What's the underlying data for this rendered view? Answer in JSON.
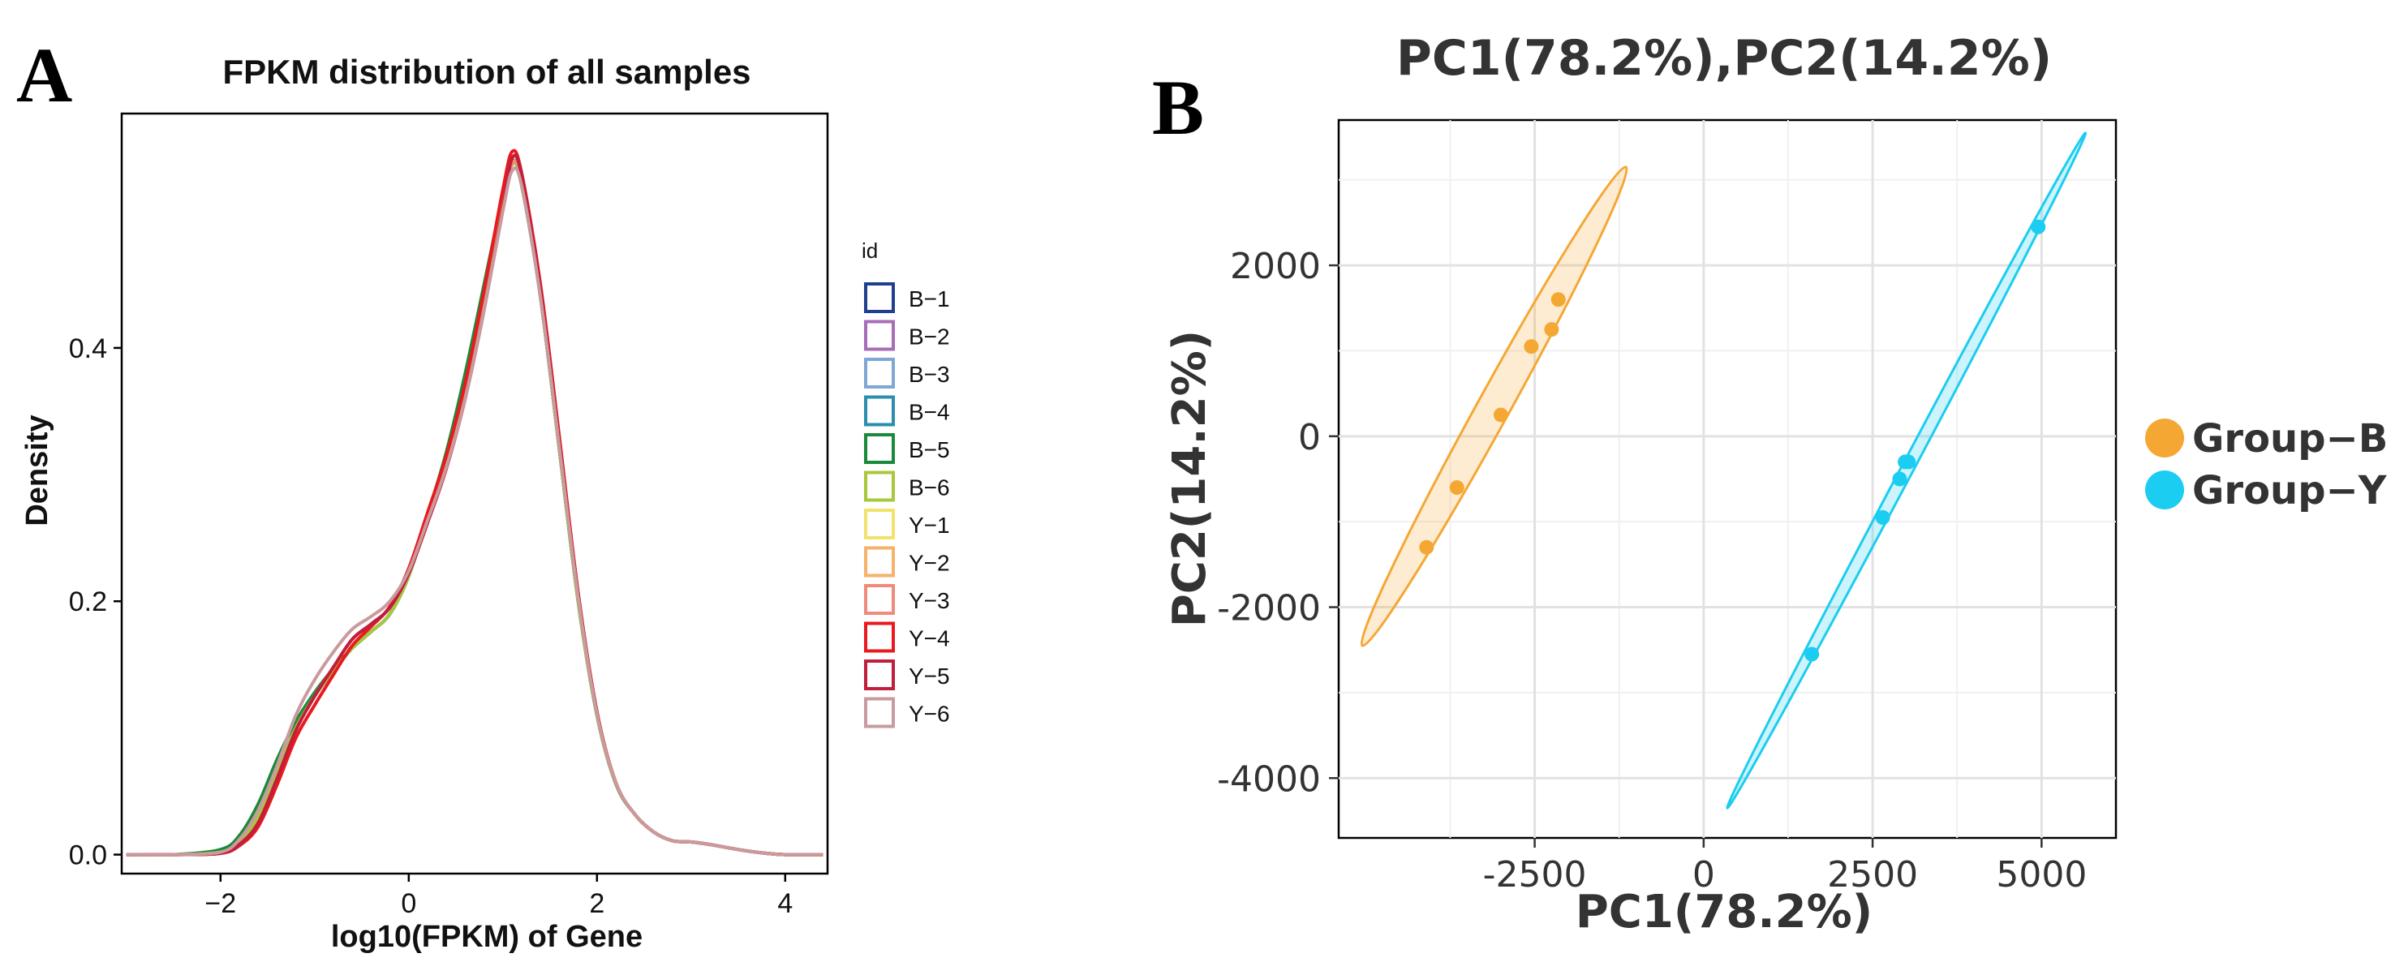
{
  "chart_data": [
    {
      "type": "line",
      "panel": "A",
      "title": "FPKM distribution of all samples",
      "xlabel": "log10(FPKM) of Gene",
      "ylabel": "Density",
      "xlim": [
        -3.05,
        4.45
      ],
      "ylim": [
        -0.015,
        0.585
      ],
      "xticks": [
        -2,
        0,
        2,
        4
      ],
      "yticks": [
        0.0,
        0.2,
        0.4
      ],
      "xtick_labels": [
        "−2",
        "0",
        "2",
        "4"
      ],
      "ytick_labels": [
        "0.0",
        "0.2",
        "0.4"
      ],
      "legend_title": "id",
      "legend_position": "right",
      "x": [
        -3.0,
        -2.5,
        -2.0,
        -1.8,
        -1.6,
        -1.4,
        -1.2,
        -1.0,
        -0.8,
        -0.6,
        -0.4,
        -0.2,
        0.0,
        0.2,
        0.4,
        0.6,
        0.8,
        1.0,
        1.1,
        1.2,
        1.4,
        1.6,
        1.8,
        2.0,
        2.2,
        2.4,
        2.6,
        2.8,
        3.0,
        3.2,
        3.5,
        3.8,
        4.0,
        4.4
      ],
      "series": [
        {
          "name": "B−1",
          "color": "#1f3f8f",
          "values": [
            0.0,
            0.0,
            0.002,
            0.01,
            0.03,
            0.065,
            0.1,
            0.125,
            0.145,
            0.163,
            0.176,
            0.19,
            0.22,
            0.265,
            0.31,
            0.37,
            0.44,
            0.515,
            0.545,
            0.53,
            0.44,
            0.32,
            0.2,
            0.11,
            0.056,
            0.032,
            0.018,
            0.011,
            0.01,
            0.008,
            0.004,
            0.001,
            0.0,
            0.0
          ]
        },
        {
          "name": "B−2",
          "color": "#a86cb8",
          "values": [
            0.0,
            0.0,
            0.002,
            0.01,
            0.03,
            0.065,
            0.1,
            0.125,
            0.145,
            0.163,
            0.176,
            0.19,
            0.22,
            0.265,
            0.31,
            0.37,
            0.44,
            0.515,
            0.545,
            0.53,
            0.44,
            0.32,
            0.2,
            0.11,
            0.056,
            0.032,
            0.018,
            0.011,
            0.01,
            0.008,
            0.004,
            0.001,
            0.0,
            0.0
          ]
        },
        {
          "name": "B−3",
          "color": "#7fa7d6",
          "values": [
            0.0,
            0.0,
            0.002,
            0.01,
            0.03,
            0.065,
            0.1,
            0.125,
            0.145,
            0.163,
            0.176,
            0.19,
            0.22,
            0.265,
            0.31,
            0.37,
            0.44,
            0.515,
            0.545,
            0.53,
            0.44,
            0.32,
            0.2,
            0.11,
            0.056,
            0.032,
            0.018,
            0.011,
            0.01,
            0.008,
            0.004,
            0.001,
            0.0,
            0.0
          ]
        },
        {
          "name": "B−4",
          "color": "#2a8fae",
          "values": [
            0.0,
            0.0,
            0.002,
            0.01,
            0.03,
            0.065,
            0.1,
            0.125,
            0.145,
            0.163,
            0.176,
            0.19,
            0.22,
            0.265,
            0.31,
            0.37,
            0.44,
            0.515,
            0.545,
            0.53,
            0.44,
            0.32,
            0.2,
            0.11,
            0.056,
            0.032,
            0.018,
            0.011,
            0.01,
            0.008,
            0.004,
            0.001,
            0.0,
            0.0
          ]
        },
        {
          "name": "B−5",
          "color": "#1a8a3a",
          "values": [
            0.0,
            0.0,
            0.004,
            0.015,
            0.04,
            0.075,
            0.105,
            0.128,
            0.147,
            0.163,
            0.176,
            0.19,
            0.22,
            0.268,
            0.318,
            0.38,
            0.45,
            0.52,
            0.548,
            0.528,
            0.44,
            0.32,
            0.2,
            0.11,
            0.056,
            0.032,
            0.018,
            0.011,
            0.01,
            0.008,
            0.004,
            0.001,
            0.0,
            0.0
          ]
        },
        {
          "name": "B−6",
          "color": "#a8c83a",
          "values": [
            0.0,
            0.0,
            0.002,
            0.01,
            0.03,
            0.065,
            0.1,
            0.125,
            0.145,
            0.163,
            0.176,
            0.19,
            0.22,
            0.265,
            0.31,
            0.37,
            0.44,
            0.515,
            0.545,
            0.53,
            0.44,
            0.32,
            0.2,
            0.11,
            0.056,
            0.032,
            0.018,
            0.011,
            0.01,
            0.008,
            0.004,
            0.001,
            0.0,
            0.0
          ]
        },
        {
          "name": "Y−1",
          "color": "#f2e26a",
          "values": [
            0.0,
            0.0,
            0.001,
            0.008,
            0.025,
            0.06,
            0.098,
            0.125,
            0.148,
            0.17,
            0.182,
            0.195,
            0.222,
            0.262,
            0.305,
            0.36,
            0.43,
            0.51,
            0.545,
            0.535,
            0.445,
            0.325,
            0.205,
            0.112,
            0.057,
            0.032,
            0.018,
            0.011,
            0.01,
            0.008,
            0.004,
            0.001,
            0.0,
            0.0
          ]
        },
        {
          "name": "Y−2",
          "color": "#f5b26a",
          "values": [
            0.0,
            0.0,
            0.001,
            0.008,
            0.025,
            0.06,
            0.098,
            0.125,
            0.148,
            0.17,
            0.182,
            0.195,
            0.222,
            0.262,
            0.305,
            0.36,
            0.43,
            0.51,
            0.545,
            0.535,
            0.445,
            0.325,
            0.205,
            0.112,
            0.057,
            0.032,
            0.018,
            0.011,
            0.01,
            0.008,
            0.004,
            0.001,
            0.0,
            0.0
          ]
        },
        {
          "name": "Y−3",
          "color": "#f08a7a",
          "values": [
            0.0,
            0.0,
            0.001,
            0.008,
            0.025,
            0.06,
            0.098,
            0.125,
            0.148,
            0.17,
            0.182,
            0.195,
            0.222,
            0.262,
            0.305,
            0.36,
            0.43,
            0.51,
            0.545,
            0.535,
            0.445,
            0.325,
            0.205,
            0.112,
            0.057,
            0.032,
            0.018,
            0.011,
            0.01,
            0.008,
            0.004,
            0.001,
            0.0,
            0.0
          ]
        },
        {
          "name": "Y−4",
          "color": "#e8191f",
          "values": [
            0.0,
            0.0,
            0.001,
            0.007,
            0.022,
            0.055,
            0.092,
            0.118,
            0.142,
            0.165,
            0.18,
            0.196,
            0.226,
            0.27,
            0.315,
            0.372,
            0.445,
            0.525,
            0.555,
            0.538,
            0.45,
            0.33,
            0.207,
            0.113,
            0.057,
            0.032,
            0.018,
            0.011,
            0.01,
            0.008,
            0.004,
            0.001,
            0.0,
            0.0
          ]
        },
        {
          "name": "Y−5",
          "color": "#c01e3c",
          "values": [
            0.0,
            0.0,
            0.001,
            0.008,
            0.025,
            0.06,
            0.098,
            0.125,
            0.148,
            0.17,
            0.182,
            0.195,
            0.222,
            0.262,
            0.305,
            0.36,
            0.43,
            0.51,
            0.55,
            0.536,
            0.445,
            0.325,
            0.205,
            0.112,
            0.057,
            0.032,
            0.018,
            0.011,
            0.01,
            0.008,
            0.004,
            0.001,
            0.0,
            0.0
          ]
        },
        {
          "name": "Y−6",
          "color": "#c99a9e",
          "values": [
            0.0,
            0.0,
            0.002,
            0.012,
            0.035,
            0.07,
            0.11,
            0.138,
            0.16,
            0.178,
            0.188,
            0.2,
            0.224,
            0.264,
            0.306,
            0.36,
            0.43,
            0.508,
            0.54,
            0.528,
            0.44,
            0.322,
            0.203,
            0.111,
            0.057,
            0.032,
            0.018,
            0.011,
            0.01,
            0.008,
            0.004,
            0.001,
            0.0,
            0.0
          ]
        }
      ]
    },
    {
      "type": "scatter",
      "panel": "B",
      "title": "PC1(78.2%),PC2(14.2%)",
      "xlabel": "PC1(78.2%)",
      "ylabel": "PC2(14.2%)",
      "xlim": [
        -5400,
        6100
      ],
      "ylim": [
        -4700,
        3700
      ],
      "xticks": [
        -2500,
        0,
        2500,
        5000
      ],
      "yticks": [
        -4000,
        -2000,
        0,
        2000
      ],
      "xtick_labels": [
        "-2500",
        "0",
        "2500",
        "5000"
      ],
      "ytick_labels": [
        "-4000",
        "-2000",
        "0",
        "2000"
      ],
      "grid": true,
      "legend_position": "right",
      "series": [
        {
          "name": "Group−B",
          "color": "#f5a733",
          "points": [
            [
              -4100,
              -1300
            ],
            [
              -3650,
              -600
            ],
            [
              -3000,
              250
            ],
            [
              -2550,
              1050
            ],
            [
              -2250,
              1250
            ],
            [
              -2150,
              1600
            ]
          ],
          "ellipse": {
            "from": [
              -5050,
              -2450
            ],
            "to": [
              -1150,
              3150
            ],
            "half_width": 240
          }
        },
        {
          "name": "Group−Y",
          "color": "#1bcdf0",
          "points": [
            [
              1600,
              -2550
            ],
            [
              2650,
              -950
            ],
            [
              2900,
              -500
            ],
            [
              2980,
              -300
            ],
            [
              3030,
              -300
            ],
            [
              4950,
              2450
            ]
          ],
          "ellipse": {
            "from": [
              350,
              -4350
            ],
            "to": [
              5650,
              3550
            ],
            "half_width": 90
          }
        }
      ]
    }
  ]
}
